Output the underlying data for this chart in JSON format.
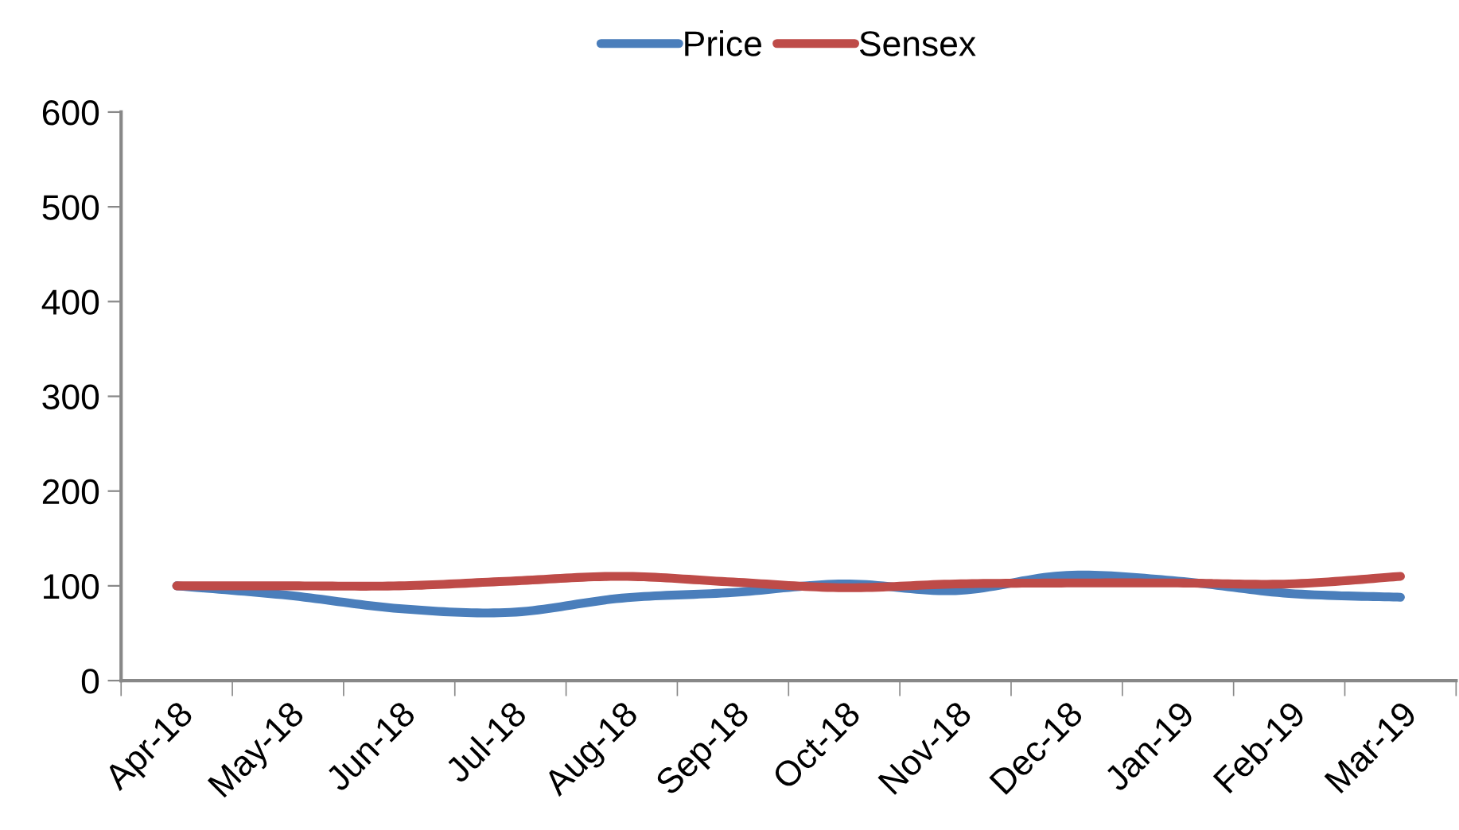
{
  "chart_data": {
    "type": "line",
    "categories": [
      "Apr-18",
      "May-18",
      "Jun-18",
      "Jul-18",
      "Aug-18",
      "Sep-18",
      "Oct-18",
      "Nov-18",
      "Dec-18",
      "Jan-19",
      "Feb-19",
      "Mar-19"
    ],
    "series": [
      {
        "name": "Price",
        "color": "#4a7ebb",
        "values": [
          100,
          90,
          76,
          72,
          87,
          93,
          102,
          95,
          111,
          105,
          92,
          88
        ]
      },
      {
        "name": "Sensex",
        "color": "#be4b48",
        "values": [
          100,
          100,
          100,
          105,
          110,
          104,
          98,
          102,
          103,
          103,
          102,
          110
        ]
      }
    ],
    "ylim": [
      0,
      600
    ],
    "yticks": [
      0,
      100,
      200,
      300,
      400,
      500,
      600
    ],
    "grid": false,
    "legend": "top",
    "marker": "none",
    "line_style": "solid"
  }
}
